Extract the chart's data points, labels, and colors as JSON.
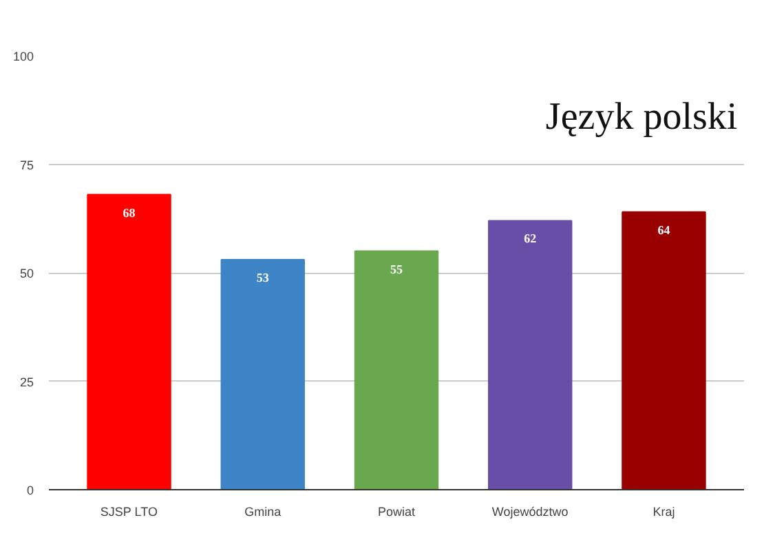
{
  "chart_data": {
    "type": "bar",
    "title": "Język polski",
    "categories": [
      "SJSP LTO",
      "Gmina",
      "Powiat",
      "Województwo",
      "Kraj"
    ],
    "values": [
      68,
      53,
      55,
      62,
      64
    ],
    "colors": [
      "#ff0000",
      "#3d85c6",
      "#6aa84f",
      "#674ea7",
      "#990000"
    ],
    "ylim": [
      0,
      100
    ],
    "yticks": [
      0,
      25,
      50,
      75,
      100
    ],
    "grid": "y",
    "data_labels": true
  }
}
